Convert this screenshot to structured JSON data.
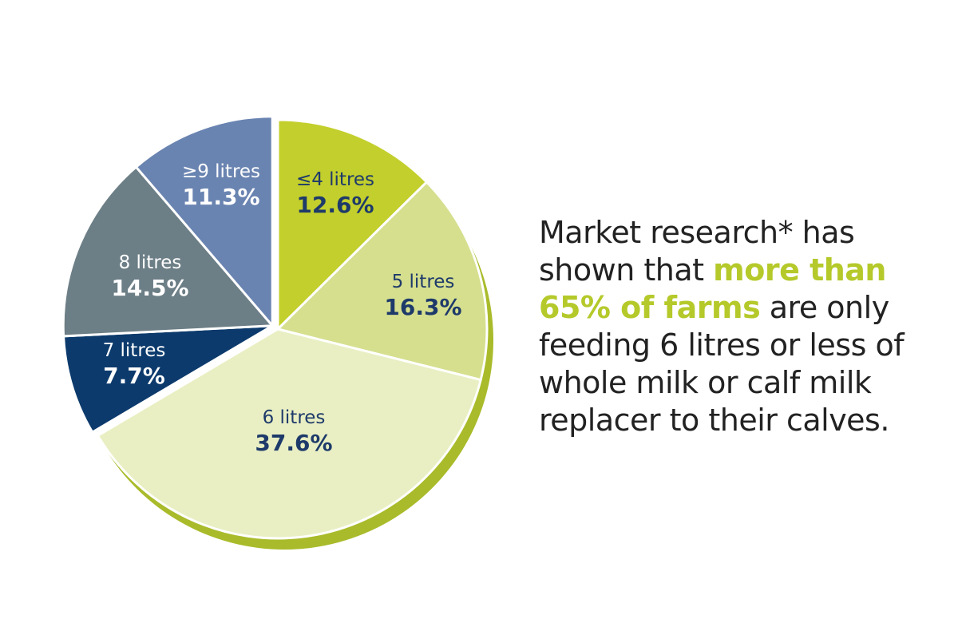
{
  "chart_data": {
    "type": "pie",
    "slices": [
      {
        "label": "≤4 litres",
        "value": 12.6,
        "value_label": "12.6%",
        "color": "#c3cf2c",
        "text_color": "#1e3a6a"
      },
      {
        "label": "5 litres",
        "value": 16.3,
        "value_label": "16.3%",
        "color": "#d6df8e",
        "text_color": "#1e3a6a"
      },
      {
        "label": "6 litres",
        "value": 37.6,
        "value_label": "37.6%",
        "color": "#e9efc3",
        "text_color": "#1e3a6a"
      },
      {
        "label": "7 litres",
        "value": 7.7,
        "value_label": "7.7%",
        "color": "#0c3a6c",
        "text_color": "#ffffff"
      },
      {
        "label": "8 litres",
        "value": 14.5,
        "value_label": "14.5%",
        "color": "#6c7e86",
        "text_color": "#ffffff"
      },
      {
        "label": "≥9 litres",
        "value": 11.3,
        "value_label": "11.3%",
        "color": "#6a84b1",
        "text_color": "#ffffff"
      }
    ],
    "exploded": "≥9 litres, 8 litres, 7 litres",
    "shadow_color": "#a9bb2a"
  },
  "caption": {
    "part1": "Market research* has shown that ",
    "highlight": "more than 65% of farms",
    "part2": " are only feeding 6 litres or less of whole milk or calf milk replacer to their calves.",
    "highlight_color": "#b5c92a"
  }
}
